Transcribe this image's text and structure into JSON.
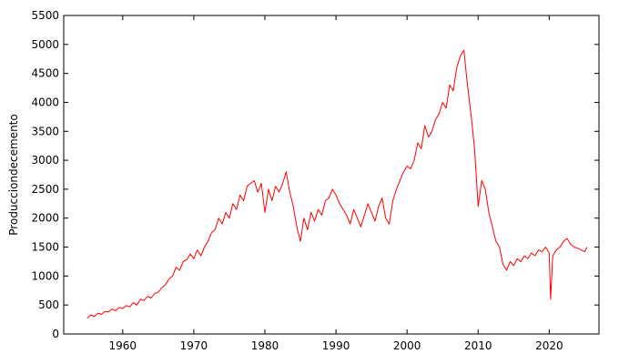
{
  "chart_data": {
    "type": "line",
    "title": "",
    "xlabel": "",
    "ylabel": "Produccion de cemento",
    "ylabel_display": "Producciondecemento",
    "xlim": [
      1951.7,
      2027
    ],
    "ylim": [
      0,
      5500
    ],
    "x_ticks": [
      1960,
      1970,
      1980,
      1990,
      2000,
      2010,
      2020
    ],
    "y_ticks": [
      0,
      500,
      1000,
      1500,
      2000,
      2500,
      3000,
      3500,
      4000,
      4500,
      5000,
      5500
    ],
    "grid": false,
    "legend": "none",
    "series": [
      {
        "color": "#ff0000",
        "x": [
          1955.0,
          1955.5,
          1956.0,
          1956.5,
          1957.0,
          1957.5,
          1958.0,
          1958.5,
          1959.0,
          1959.5,
          1960.0,
          1960.5,
          1961.0,
          1961.5,
          1962.0,
          1962.5,
          1963.0,
          1963.5,
          1964.0,
          1964.5,
          1965.0,
          1965.5,
          1966.0,
          1966.5,
          1967.0,
          1967.5,
          1968.0,
          1968.5,
          1969.0,
          1969.5,
          1970.0,
          1970.5,
          1971.0,
          1971.5,
          1972.0,
          1972.5,
          1973.0,
          1973.5,
          1974.0,
          1974.5,
          1975.0,
          1975.5,
          1976.0,
          1976.5,
          1977.0,
          1977.5,
          1978.0,
          1978.5,
          1979.0,
          1979.5,
          1980.0,
          1980.5,
          1981.0,
          1981.5,
          1982.0,
          1982.5,
          1983.0,
          1983.5,
          1984.0,
          1984.5,
          1985.0,
          1985.5,
          1986.0,
          1986.5,
          1987.0,
          1987.5,
          1988.0,
          1988.5,
          1989.0,
          1989.5,
          1990.0,
          1990.5,
          1991.0,
          1991.5,
          1992.0,
          1992.5,
          1993.0,
          1993.5,
          1994.0,
          1994.5,
          1995.0,
          1995.5,
          1996.0,
          1996.5,
          1997.0,
          1997.5,
          1998.0,
          1998.5,
          1999.0,
          1999.5,
          2000.0,
          2000.5,
          2001.0,
          2001.5,
          2002.0,
          2002.5,
          2003.0,
          2003.5,
          2004.0,
          2004.5,
          2005.0,
          2005.5,
          2006.0,
          2006.5,
          2007.0,
          2007.5,
          2008.0,
          2008.5,
          2009.0,
          2009.5,
          2010.0,
          2010.5,
          2011.0,
          2011.5,
          2012.0,
          2012.5,
          2013.0,
          2013.5,
          2014.0,
          2014.5,
          2015.0,
          2015.5,
          2016.0,
          2016.5,
          2017.0,
          2017.5,
          2018.0,
          2018.5,
          2019.0,
          2019.5,
          2020.0,
          2020.2,
          2020.5,
          2021.0,
          2021.5,
          2022.0,
          2022.5,
          2023.0,
          2023.5,
          2024.0,
          2024.5,
          2025.0,
          2025.3
        ],
        "y": [
          270,
          330,
          300,
          360,
          340,
          390,
          380,
          430,
          400,
          460,
          440,
          490,
          470,
          540,
          500,
          600,
          580,
          650,
          620,
          700,
          720,
          800,
          850,
          950,
          1000,
          1150,
          1100,
          1250,
          1280,
          1380,
          1300,
          1450,
          1350,
          1500,
          1600,
          1750,
          1800,
          2000,
          1900,
          2100,
          2000,
          2250,
          2150,
          2400,
          2300,
          2550,
          2600,
          2650,
          2450,
          2600,
          2100,
          2500,
          2300,
          2550,
          2450,
          2600,
          2800,
          2450,
          2200,
          1850,
          1600,
          2000,
          1800,
          2100,
          1950,
          2150,
          2050,
          2300,
          2350,
          2500,
          2400,
          2250,
          2150,
          2050,
          1900,
          2150,
          2000,
          1850,
          2050,
          2250,
          2100,
          1950,
          2200,
          2350,
          2000,
          1900,
          2300,
          2500,
          2650,
          2800,
          2900,
          2850,
          3000,
          3300,
          3200,
          3600,
          3400,
          3500,
          3700,
          3800,
          4000,
          3900,
          4300,
          4200,
          4600,
          4800,
          4900,
          4300,
          3800,
          3200,
          2200,
          2650,
          2500,
          2100,
          1850,
          1600,
          1500,
          1200,
          1100,
          1250,
          1180,
          1300,
          1250,
          1350,
          1300,
          1400,
          1350,
          1450,
          1420,
          1500,
          1400,
          600,
          1350,
          1450,
          1500,
          1600,
          1650,
          1550,
          1500,
          1480,
          1450,
          1420,
          1500
        ]
      }
    ]
  }
}
